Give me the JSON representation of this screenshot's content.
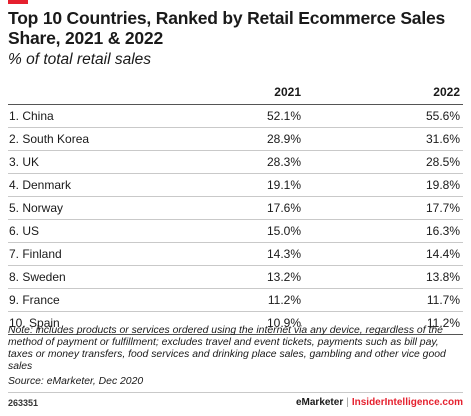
{
  "accent_color": "#e5202e",
  "chart_data": {
    "type": "table",
    "title": "Top 10 Countries, Ranked by Retail Ecommerce Sales Share, 2021 & 2022",
    "subtitle": "% of total retail sales",
    "columns": [
      "2021",
      "2022"
    ],
    "rows": [
      {
        "label": "1. China",
        "values": [
          "52.1%",
          "55.6%"
        ]
      },
      {
        "label": "2. South Korea",
        "values": [
          "28.9%",
          "31.6%"
        ]
      },
      {
        "label": "3. UK",
        "values": [
          "28.3%",
          "28.5%"
        ]
      },
      {
        "label": "4. Denmark",
        "values": [
          "19.1%",
          "19.8%"
        ]
      },
      {
        "label": "5. Norway",
        "values": [
          "17.6%",
          "17.7%"
        ]
      },
      {
        "label": "6. US",
        "values": [
          "15.0%",
          "16.3%"
        ]
      },
      {
        "label": "7. Finland",
        "values": [
          "14.3%",
          "14.4%"
        ]
      },
      {
        "label": "8. Sweden",
        "values": [
          "13.2%",
          "13.8%"
        ]
      },
      {
        "label": "9. France",
        "values": [
          "11.2%",
          "11.7%"
        ]
      },
      {
        "label": "10. Spain",
        "values": [
          "10.9%",
          "11.2%"
        ]
      }
    ],
    "note": "Note: includes products or services ordered using the internet via any device, regardless of the method of payment or fulfillment; excludes travel and event tickets, payments such as bill pay, taxes or money transfers, food services and drinking place sales, gambling and other vice good sales",
    "source": "Source: eMarketer, Dec 2020"
  },
  "footer": {
    "chart_id": "263351",
    "brand": "eMarketer",
    "separator": "|",
    "site": "InsiderIntelligence.com"
  }
}
